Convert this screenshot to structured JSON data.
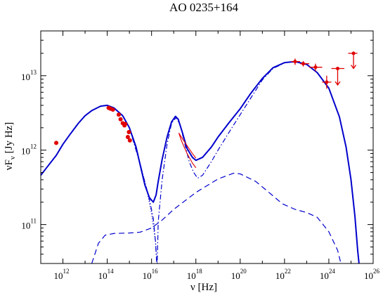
{
  "chart_data": {
    "type": "scatter",
    "title": "AO 0235+164",
    "xlabel_main": "ν [Hz]",
    "ylabel": {
      "pre": "νF",
      "sub": "ν",
      "post": " [Jy Hz]"
    },
    "x_scale": "log",
    "y_scale": "log",
    "xlim": [
      100000000000.0,
      1e+26
    ],
    "ylim": [
      30000000000.0,
      40000000000000.0
    ],
    "grid": false,
    "x_ticks": [
      {
        "mantissa": "10",
        "exponent": "12",
        "value": 1000000000000.0
      },
      {
        "mantissa": "10",
        "exponent": "14",
        "value": 100000000000000.0
      },
      {
        "mantissa": "10",
        "exponent": "16",
        "value": 1e+16
      },
      {
        "mantissa": "10",
        "exponent": "18",
        "value": 1e+18
      },
      {
        "mantissa": "10",
        "exponent": "20",
        "value": 1e+20
      },
      {
        "mantissa": "10",
        "exponent": "22",
        "value": 1e+22
      },
      {
        "mantissa": "10",
        "exponent": "24",
        "value": 1e+24
      },
      {
        "mantissa": "10",
        "exponent": "26",
        "value": 1e+26
      }
    ],
    "y_ticks": [
      {
        "mantissa": "10",
        "exponent": "11",
        "value": 100000000000.0
      },
      {
        "mantissa": "10",
        "exponent": "12",
        "value": 1000000000000.0
      },
      {
        "mantissa": "10",
        "exponent": "13",
        "value": 10000000000000.0
      }
    ],
    "colors": {
      "model": "#0000cc",
      "data": "#e00000"
    },
    "series": [
      {
        "style": "solid",
        "points": [
          [
            100000000000.0,
            460000000000.0
          ],
          [
            200000000000.0,
            600000000000.0
          ],
          [
            500000000000.0,
            850000000000.0
          ],
          [
            1000000000000.0,
            1200000000000.0
          ],
          [
            2000000000000.0,
            1600000000000.0
          ],
          [
            5000000000000.0,
            2300000000000.0
          ],
          [
            10000000000000.0,
            2900000000000.0
          ],
          [
            20000000000000.0,
            3400000000000.0
          ],
          [
            50000000000000.0,
            3900000000000.0
          ],
          [
            100000000000000.0,
            4000000000000.0
          ],
          [
            200000000000000.0,
            3700000000000.0
          ],
          [
            500000000000000.0,
            2900000000000.0
          ],
          [
            1000000000000000.0,
            2000000000000.0
          ],
          [
            2000000000000000.0,
            1100000000000.0
          ],
          [
            3000000000000000.0,
            650000000000.0
          ],
          [
            5000000000000000.0,
            340000000000.0
          ],
          [
            8000000000000000.0,
            230000000000.0
          ],
          [
            1.2e+16,
            200000000000.0
          ],
          [
            1.6e+16,
            250000000000.0
          ],
          [
            2e+16,
            380000000000.0
          ],
          [
            3e+16,
            750000000000.0
          ],
          [
            5e+16,
            1500000000000.0
          ],
          [
            8e+16,
            2400000000000.0
          ],
          [
            1.2e+17,
            2850000000000.0
          ],
          [
            1.6e+17,
            2600000000000.0
          ],
          [
            2.5e+17,
            1700000000000.0
          ],
          [
            4e+17,
            1050000000000.0
          ],
          [
            7e+17,
            800000000000.0
          ],
          [
            1e+18,
            730000000000.0
          ],
          [
            2e+18,
            800000000000.0
          ],
          [
            5e+18,
            1100000000000.0
          ],
          [
            1e+19,
            1500000000000.0
          ],
          [
            3e+19,
            2300000000000.0
          ],
          [
            1e+20,
            3600000000000.0
          ],
          [
            3e+20,
            5800000000000.0
          ],
          [
            1e+21,
            9200000000000.0
          ],
          [
            3e+21,
            12800000000000.0
          ],
          [
            1e+22,
            15000000000000.0
          ],
          [
            3e+22,
            15500000000000.0
          ],
          [
            1e+23,
            14200000000000.0
          ],
          [
            3e+23,
            11000000000000.0
          ],
          [
            1e+24,
            6800000000000.0
          ],
          [
            3e+24,
            2800000000000.0
          ],
          [
            6e+24,
            1100000000000.0
          ],
          [
            1e+25,
            400000000000.0
          ],
          [
            1.5e+25,
            130000000000.0
          ],
          [
            2e+25,
            45000000000.0
          ],
          [
            2.3e+25,
            30000000000.0
          ]
        ]
      },
      {
        "style": "dotted",
        "points": [
          [
            1000000000000000.0,
            2000000000000.0
          ],
          [
            3000000000000000.0,
            680000000000.0
          ],
          [
            6000000000000000.0,
            300000000000.0
          ],
          [
            1e+16,
            140000000000.0
          ],
          [
            1.5e+16,
            60000000000.0
          ],
          [
            1.8e+16,
            30000000000.0
          ]
        ]
      },
      {
        "style": "dashdot",
        "points": [
          [
            1000000000000000.0,
            2000000000000.0
          ],
          [
            3000000000000000.0,
            660000000000.0
          ],
          [
            8000000000000000.0,
            220000000000.0
          ],
          [
            1.2e+16,
            120000000000.0
          ],
          [
            1.5e+16,
            60000000000.0
          ],
          [
            1.7e+16,
            30000000000.0
          ],
          [
            1.8e+16,
            30000000000.0
          ],
          [
            2e+16,
            110000000000.0
          ],
          [
            3e+16,
            400000000000.0
          ],
          [
            5e+16,
            1200000000000.0
          ],
          [
            8e+16,
            2300000000000.0
          ],
          [
            1.3e+17,
            2750000000000.0
          ],
          [
            2e+17,
            2100000000000.0
          ],
          [
            3e+17,
            1300000000000.0
          ],
          [
            5e+17,
            700000000000.0
          ],
          [
            8e+17,
            500000000000.0
          ],
          [
            1.2e+18,
            420000000000.0
          ],
          [
            2e+18,
            460000000000.0
          ],
          [
            5e+18,
            700000000000.0
          ],
          [
            1e+19,
            1000000000000.0
          ],
          [
            3e+19,
            1700000000000.0
          ],
          [
            1e+20,
            3000000000000.0
          ],
          [
            1e+21,
            8800000000000.0
          ],
          [
            3e+21,
            12500000000000.0
          ],
          [
            1e+22,
            14800000000000.0
          ]
        ]
      },
      {
        "style": "dashed",
        "points": [
          [
            20000000000000.0,
            30000000000.0
          ],
          [
            40000000000000.0,
            56000000000.0
          ],
          [
            80000000000000.0,
            72000000000.0
          ],
          [
            200000000000000.0,
            76000000000.0
          ],
          [
            1000000000000000.0,
            77000000000.0
          ],
          [
            3000000000000000.0,
            79000000000.0
          ],
          [
            1e+16,
            90000000000.0
          ],
          [
            3e+16,
            115000000000.0
          ],
          [
            1e+17,
            160000000000.0
          ],
          [
            1e+18,
            270000000000.0
          ],
          [
            1e+19,
            410000000000.0
          ],
          [
            5e+19,
            490000000000.0
          ],
          [
            1e+20,
            480000000000.0
          ],
          [
            5e+20,
            380000000000.0
          ],
          [
            2e+21,
            270000000000.0
          ],
          [
            8e+21,
            190000000000.0
          ],
          [
            3e+22,
            160000000000.0
          ],
          [
            1e+23,
            145000000000.0
          ],
          [
            3e+23,
            125000000000.0
          ],
          [
            1e+24,
            80000000000.0
          ],
          [
            2.5e+24,
            45000000000.0
          ],
          [
            3.5e+24,
            30000000000.0
          ]
        ]
      },
      {
        "style": "solid-data",
        "points": [
          [
            1.7e+17,
            1700000000000.0
          ],
          [
            2.2e+17,
            1350000000000.0
          ],
          [
            4e+17,
            900000000000.0
          ],
          [
            7e+17,
            670000000000.0
          ],
          [
            1e+18,
            580000000000.0
          ]
        ]
      },
      {
        "style": "solid-data",
        "points": [
          [
            1.7e+17,
            1700000000000.0
          ],
          [
            2.2e+17,
            1500000000000.0
          ],
          [
            4e+17,
            1150000000000.0
          ],
          [
            7e+17,
            900000000000.0
          ],
          [
            1e+18,
            780000000000.0
          ]
        ]
      }
    ],
    "data_points": [
      {
        "x": 500000000000.0,
        "y": 1250000000000.0
      },
      {
        "x": 115000000000000.0,
        "y": 3700000000000.0
      },
      {
        "x": 140000000000000.0,
        "y": 3600000000000.0
      },
      {
        "x": 180000000000000.0,
        "y": 3500000000000.0
      },
      {
        "x": 330000000000000.0,
        "y": 3000000000000.0
      },
      {
        "x": 400000000000000.0,
        "y": 2600000000000.0
      },
      {
        "x": 500000000000000.0,
        "y": 2300000000000.0
      },
      {
        "x": 600000000000000.0,
        "y": 2150000000000.0
      },
      {
        "x": 650000000000000.0,
        "y": 2250000000000.0
      },
      {
        "x": 850000000000000.0,
        "y": 1500000000000.0
      },
      {
        "x": 950000000000000.0,
        "y": 1750000000000.0
      },
      {
        "x": 1050000000000000.0,
        "y": 1350000000000.0
      }
    ],
    "gamma_points": [
      {
        "x": 3e+22,
        "y": 15500000000000.0,
        "xerr": [
          2e+22,
          5e+22
        ],
        "yerr": [
          14000000000000.0,
          17000000000000.0
        ],
        "upper_limit": false
      },
      {
        "x": 7e+22,
        "y": 14500000000000.0,
        "xerr": [
          5e+22,
          1.3e+23
        ],
        "yerr": [
          13300000000000.0,
          15700000000000.0
        ],
        "upper_limit": false
      },
      {
        "x": 2.5e+23,
        "y": 13000000000000.0,
        "xerr": [
          1.3e+23,
          5e+23
        ],
        "yerr": [
          11500000000000.0,
          14500000000000.0
        ],
        "upper_limit": false
      },
      {
        "x": 8e+23,
        "y": 8200000000000.0,
        "xerr": [
          5e+23,
          1.3e+24
        ],
        "yerr": [
          6700000000000.0,
          10000000000000.0
        ],
        "upper_limit": false
      },
      {
        "x": 2.5e+24,
        "y": 12500000000000.0,
        "xerr": [
          1.3e+24,
          5e+24
        ],
        "yerr": [
          7500000000000.0,
          12500000000000.0
        ],
        "upper_limit": true
      },
      {
        "x": 1.3e+25,
        "y": 20000000000000.0,
        "xerr": [
          7.5e+24,
          1.95e+25
        ],
        "yerr": [
          12500000000000.0,
          20000000000000.0
        ],
        "upper_limit": true
      }
    ]
  }
}
